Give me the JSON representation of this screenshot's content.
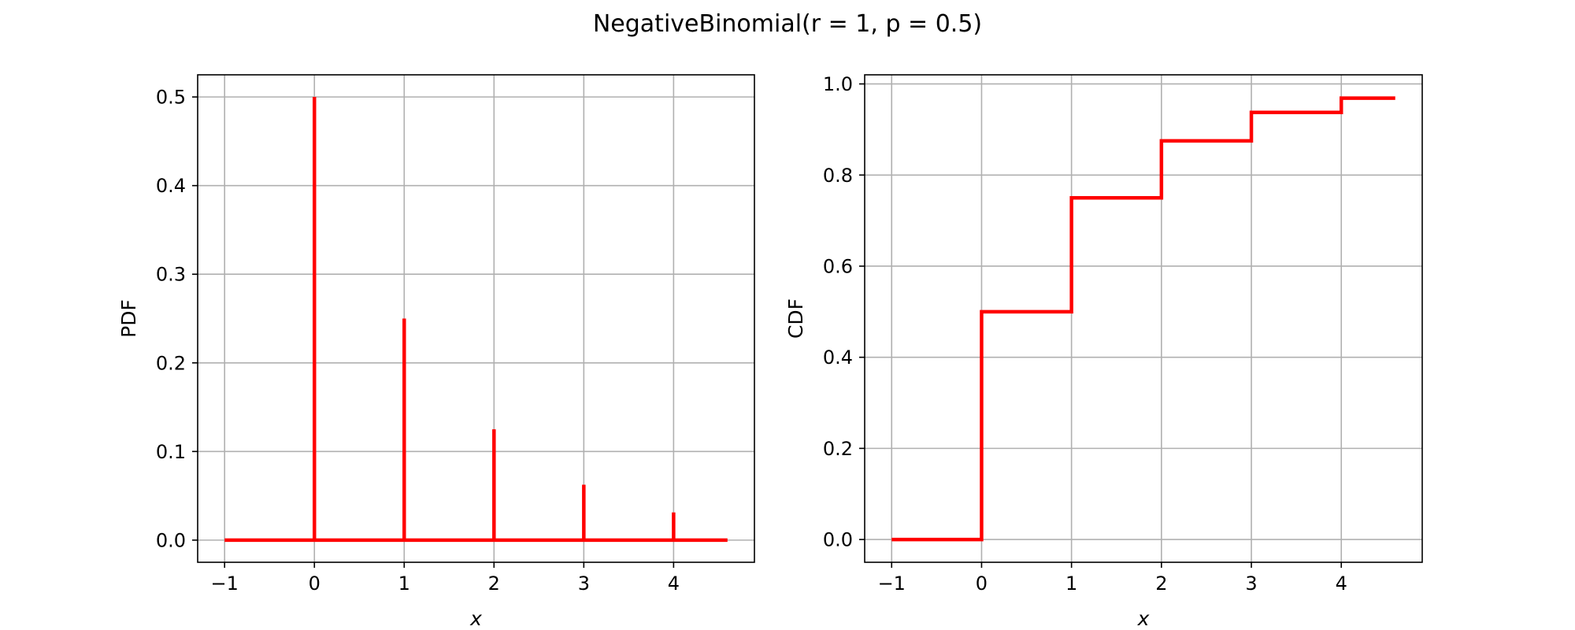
{
  "figure": {
    "title": "NegativeBinomial(r = 1, p = 0.5)",
    "line_color": "#ff0000",
    "grid_color": "#b0b0b0",
    "background": "#ffffff"
  },
  "chart_data": [
    {
      "type": "stem",
      "xlabel": "x",
      "ylabel": "PDF",
      "xlim": [
        -1.3,
        4.9
      ],
      "ylim": [
        -0.025,
        0.525
      ],
      "xticks": [
        -1,
        0,
        1,
        2,
        3,
        4
      ],
      "xtick_labels": [
        "−1",
        "0",
        "1",
        "2",
        "3",
        "4"
      ],
      "yticks": [
        0.0,
        0.1,
        0.2,
        0.3,
        0.4,
        0.5
      ],
      "ytick_labels": [
        "0.0",
        "0.1",
        "0.2",
        "0.3",
        "0.4",
        "0.5"
      ],
      "grid": true,
      "baseline": {
        "x": [
          -1,
          4.6
        ],
        "y": 0
      },
      "x": [
        0,
        1,
        2,
        3,
        4
      ],
      "values": [
        0.5,
        0.25,
        0.125,
        0.0625,
        0.03125
      ]
    },
    {
      "type": "step",
      "xlabel": "x",
      "ylabel": "CDF",
      "xlim": [
        -1.3,
        4.9
      ],
      "ylim": [
        -0.05,
        1.02
      ],
      "xticks": [
        -1,
        0,
        1,
        2,
        3,
        4
      ],
      "xtick_labels": [
        "−1",
        "0",
        "1",
        "2",
        "3",
        "4"
      ],
      "yticks": [
        0.0,
        0.2,
        0.4,
        0.6,
        0.8,
        1.0
      ],
      "ytick_labels": [
        "0.0",
        "0.2",
        "0.4",
        "0.6",
        "0.8",
        "1.0"
      ],
      "grid": true,
      "x": [
        -1,
        0,
        1,
        2,
        3,
        4,
        4.6
      ],
      "values": [
        0.0,
        0.5,
        0.75,
        0.875,
        0.9375,
        0.96875,
        0.96875
      ]
    }
  ]
}
